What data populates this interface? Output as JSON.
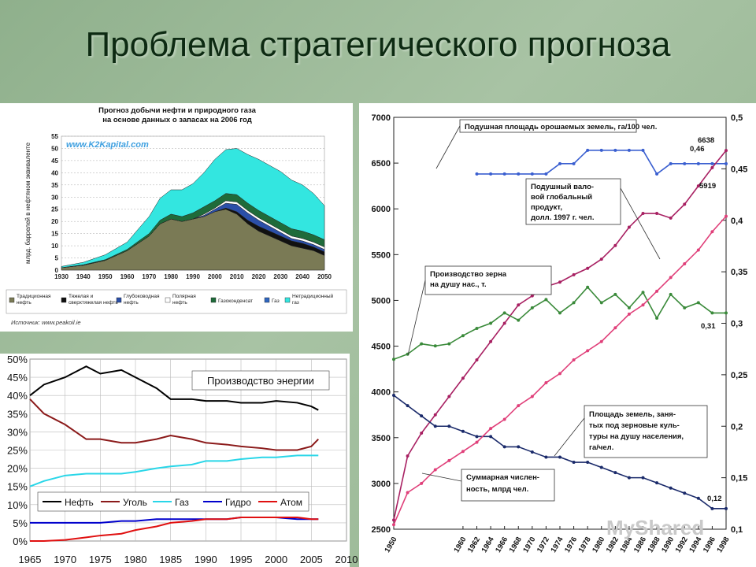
{
  "slide": {
    "title": "Проблема стратегического прогноза"
  },
  "watermark": "MyShared",
  "chart_data": [
    {
      "type": "area",
      "title": "Прогноз добычи нефти и природного газа на основе данных о запасах на 2006 год",
      "ylabel": "млрд. баррелей в нефтяном эквиваленте",
      "watermark": "www.K2Kapital.com",
      "source": "Источник: www.peakoil.ie",
      "x": [
        1930,
        1940,
        1950,
        1960,
        1965,
        1970,
        1975,
        1980,
        1985,
        1990,
        1995,
        2000,
        2005,
        2010,
        2015,
        2020,
        2025,
        2030,
        2035,
        2040,
        2045,
        2050
      ],
      "xticks": [
        "1930",
        "1940",
        "1950",
        "1960",
        "1970",
        "1980",
        "1990",
        "2000",
        "2010",
        "2020",
        "2030",
        "2040",
        "2050"
      ],
      "yticks": [
        "0",
        "5",
        "10",
        "15",
        "20",
        "25",
        "30",
        "35",
        "40",
        "45",
        "50",
        "55"
      ],
      "xlim": [
        1930,
        2050
      ],
      "ylim": [
        0,
        55
      ],
      "legend_position": "bottom",
      "series": [
        {
          "name": "Традиционная нефть",
          "color": "#7a7a55",
          "values": [
            1,
            2,
            4,
            8,
            11,
            14,
            19,
            21,
            20,
            21,
            22,
            24,
            25,
            23,
            19,
            16,
            14,
            12,
            10,
            9,
            8,
            6
          ]
        },
        {
          "name": "Тяжелая и сверхтяжелая нефть",
          "color": "#111111",
          "values": [
            0,
            0,
            0,
            0,
            0,
            0,
            0,
            0,
            0,
            0,
            0,
            0,
            0.5,
            1,
            1.5,
            2,
            2,
            2,
            2,
            2,
            1.5,
            1.5
          ]
        },
        {
          "name": "Глубоководная нефть",
          "color": "#2b4fa8",
          "values": [
            0,
            0,
            0,
            0,
            0,
            0,
            0,
            0,
            0,
            0,
            0.5,
            1,
            2,
            3,
            3,
            2.5,
            2,
            1.5,
            1,
            1,
            1,
            1
          ]
        },
        {
          "name": "Полярная нефть",
          "color": "#ffffff",
          "values": [
            0,
            0,
            0,
            0,
            0,
            0,
            0,
            0,
            0,
            0,
            0.5,
            0.5,
            1,
            1,
            1,
            1,
            1,
            1,
            1,
            1,
            1,
            1
          ]
        },
        {
          "name": "Газоконденсат",
          "color": "#1f6b3a",
          "values": [
            0,
            0.2,
            0.3,
            0.5,
            0.8,
            1,
            1.5,
            2,
            2,
            2.5,
            3,
            3,
            3,
            3,
            3,
            3,
            3,
            3,
            3,
            3,
            3,
            3
          ]
        },
        {
          "name": "Газ",
          "color": "#2f67c0",
          "values": [
            0,
            0,
            0,
            0,
            0,
            0,
            0,
            0,
            0,
            0,
            0,
            0,
            0,
            0,
            0,
            0,
            0,
            0,
            0,
            0,
            0,
            0
          ]
        },
        {
          "name": "Нетрадиционный газ",
          "color": "#33e6e0",
          "values": [
            0.5,
            1,
            2,
            3,
            5,
            7,
            9,
            10,
            11,
            12,
            14,
            17,
            18,
            19,
            20,
            21,
            21,
            21,
            20,
            19,
            17,
            14
          ]
        }
      ],
      "legend_labels": [
        "Традиционная нефть",
        "Тяжелая и сверхтяжелая нефть",
        "Глубоководная нефть",
        "Полярная нефть",
        "Газоконденсат",
        "Газ",
        "Нетрадиционный газ"
      ]
    },
    {
      "type": "line",
      "title": "Производство энергии",
      "x": [
        1965,
        1967,
        1970,
        1973,
        1975,
        1978,
        1980,
        1983,
        1985,
        1988,
        1990,
        1993,
        1995,
        1998,
        2000,
        2003,
        2005,
        2006
      ],
      "xticks": [
        "1965",
        "1970",
        "1975",
        "1980",
        "1985",
        "1990",
        "1995",
        "2000",
        "2005",
        "2010"
      ],
      "yticks": [
        "0%",
        "5%",
        "10%",
        "15%",
        "20%",
        "25%",
        "30%",
        "35%",
        "40%",
        "45%",
        "50%"
      ],
      "xlim": [
        1965,
        2010
      ],
      "ylim": [
        0,
        50
      ],
      "legend_position": "bottom-left",
      "series": [
        {
          "name": "Нефть",
          "color": "#000000",
          "values": [
            40,
            43,
            45,
            48,
            46,
            47,
            45,
            42,
            39,
            39,
            38.5,
            38.5,
            38,
            38,
            38.5,
            38,
            37,
            36
          ]
        },
        {
          "name": "Уголь",
          "color": "#8b1a1a",
          "values": [
            39,
            35,
            32,
            28,
            28,
            27,
            27,
            28,
            29,
            28,
            27,
            26.5,
            26,
            25.5,
            25,
            25,
            26,
            28
          ]
        },
        {
          "name": "Газ",
          "color": "#29d6e8",
          "values": [
            15,
            16.5,
            18,
            18.5,
            18.5,
            18.5,
            19,
            20,
            20.5,
            21,
            22,
            22,
            22.5,
            23,
            23,
            23.5,
            23.5,
            23.5
          ]
        },
        {
          "name": "Гидро",
          "color": "#0000cc",
          "values": [
            5,
            5,
            5,
            5,
            5,
            5.5,
            5.5,
            6,
            6,
            6,
            6,
            6,
            6.5,
            6.5,
            6.5,
            6,
            6,
            6
          ]
        },
        {
          "name": "Атом",
          "color": "#e01010",
          "values": [
            0,
            0,
            0.3,
            1,
            1.5,
            2,
            3,
            4,
            5,
            5.5,
            6,
            6,
            6.5,
            6.5,
            6.5,
            6.5,
            6,
            6
          ]
        }
      ]
    },
    {
      "type": "line",
      "x": [
        1950,
        1952,
        1954,
        1956,
        1958,
        1960,
        1962,
        1964,
        1966,
        1968,
        1970,
        1972,
        1974,
        1976,
        1978,
        1980,
        1982,
        1984,
        1986,
        1988,
        1990,
        1992,
        1994,
        1996,
        1998
      ],
      "xticks": [
        "1950",
        "1960",
        "1962",
        "1964",
        "1966",
        "1968",
        "1970",
        "1972",
        "1974",
        "1976",
        "1978",
        "1980",
        "1982",
        "1984",
        "1986",
        "1988",
        "1990",
        "1992",
        "1994",
        "1996",
        "1998"
      ],
      "yticks_left": [
        "2500",
        "3000",
        "3500",
        "4000",
        "4500",
        "5000",
        "5500",
        "6000",
        "6500",
        "7000"
      ],
      "yticks_right": [
        "0,1",
        "0,15",
        "0,2",
        "0,25",
        "0,3",
        "0,35",
        "0,4",
        "0,45",
        "0,5"
      ],
      "xlim": [
        1950,
        1998
      ],
      "ylim_left": [
        2500,
        7000
      ],
      "ylim_right": [
        0.1,
        0.5
      ],
      "series": [
        {
          "name": "Подушная площадь орошаемых земель, га/100 чел.",
          "axis": "right",
          "color": "#3a5fd0",
          "x": [
            1962,
            1964,
            1966,
            1968,
            1970,
            1972,
            1974,
            1976,
            1978,
            1980,
            1982,
            1984,
            1986,
            1988,
            1990,
            1992,
            1994,
            1996,
            1998
          ],
          "values": [
            0.445,
            0.445,
            0.445,
            0.445,
            0.445,
            0.445,
            0.455,
            0.455,
            0.468,
            0.468,
            0.468,
            0.468,
            0.468,
            0.445,
            0.455,
            0.455,
            0.455,
            0.455,
            0.455
          ]
        },
        {
          "name": "Подушный валовой глобальный продукт, долл. 1997 г. чел.",
          "axis": "left",
          "color": "#a82062",
          "x": [
            1950,
            1952,
            1954,
            1956,
            1958,
            1960,
            1962,
            1964,
            1966,
            1968,
            1970,
            1972,
            1974,
            1976,
            1978,
            1980,
            1982,
            1984,
            1986,
            1988,
            1990,
            1992,
            1994,
            1996,
            1998
          ],
          "values": [
            2600,
            3300,
            3550,
            3750,
            3950,
            4150,
            4350,
            4550,
            4750,
            4950,
            5050,
            5150,
            5200,
            5280,
            5350,
            5450,
            5600,
            5800,
            5950,
            5950,
            5900,
            6050,
            6250,
            6450,
            6638
          ]
        },
        {
          "name": "Производство зерна на душу нас., т.",
          "axis": "right",
          "color": "#3a8a3a",
          "x": [
            1950,
            1952,
            1954,
            1956,
            1958,
            1960,
            1962,
            1964,
            1966,
            1968,
            1970,
            1972,
            1974,
            1976,
            1978,
            1980,
            1982,
            1984,
            1986,
            1988,
            1990,
            1992,
            1994,
            1996,
            1998
          ],
          "values": [
            0.265,
            0.27,
            0.28,
            0.278,
            0.28,
            0.288,
            0.295,
            0.3,
            0.31,
            0.303,
            0.315,
            0.323,
            0.31,
            0.32,
            0.335,
            0.32,
            0.328,
            0.315,
            0.33,
            0.305,
            0.328,
            0.315,
            0.32,
            0.31,
            0.31
          ]
        },
        {
          "name": "Площадь земель, занятых под зерновые культуры на душу населения, га/чел.",
          "axis": "right",
          "color": "#1a2a6a",
          "x": [
            1950,
            1952,
            1954,
            1956,
            1958,
            1960,
            1962,
            1964,
            1966,
            1968,
            1970,
            1972,
            1974,
            1976,
            1978,
            1980,
            1982,
            1984,
            1986,
            1988,
            1990,
            1992,
            1994,
            1996,
            1998
          ],
          "values": [
            0.23,
            0.22,
            0.21,
            0.2,
            0.2,
            0.195,
            0.19,
            0.19,
            0.18,
            0.18,
            0.175,
            0.17,
            0.17,
            0.165,
            0.165,
            0.16,
            0.155,
            0.15,
            0.15,
            0.145,
            0.14,
            0.135,
            0.13,
            0.12,
            0.12
          ]
        },
        {
          "name": "Суммарная численность, млрд чел.",
          "axis": "left",
          "color": "#e0407a",
          "x": [
            1950,
            1952,
            1954,
            1956,
            1958,
            1960,
            1962,
            1964,
            1966,
            1968,
            1970,
            1972,
            1974,
            1976,
            1978,
            1980,
            1982,
            1984,
            1986,
            1988,
            1990,
            1992,
            1994,
            1996,
            1998
          ],
          "values": [
            2550,
            2900,
            3000,
            3150,
            3250,
            3350,
            3450,
            3600,
            3700,
            3850,
            3950,
            4100,
            4200,
            4350,
            4450,
            4550,
            4700,
            4850,
            4950,
            5100,
            5250,
            5400,
            5550,
            5750,
            5919
          ]
        }
      ],
      "annotations": [
        {
          "text": "Подушная площадь орошаемых земель, га/100 чел."
        },
        {
          "text": "Подушный вало-вой глобальный продукт, долл. 1997 г. чел."
        },
        {
          "text": "Производство зерна на душу нас., т."
        },
        {
          "text": "Площадь земель, заня-тых под зерновые куль-туры на душу населения, га/чел."
        },
        {
          "text": "Суммарная числен-ность, млрд чел."
        },
        {
          "text": "6638"
        },
        {
          "text": "5919"
        },
        {
          "text": "0,46"
        },
        {
          "text": "0,31"
        },
        {
          "text": "0,12"
        }
      ]
    }
  ]
}
